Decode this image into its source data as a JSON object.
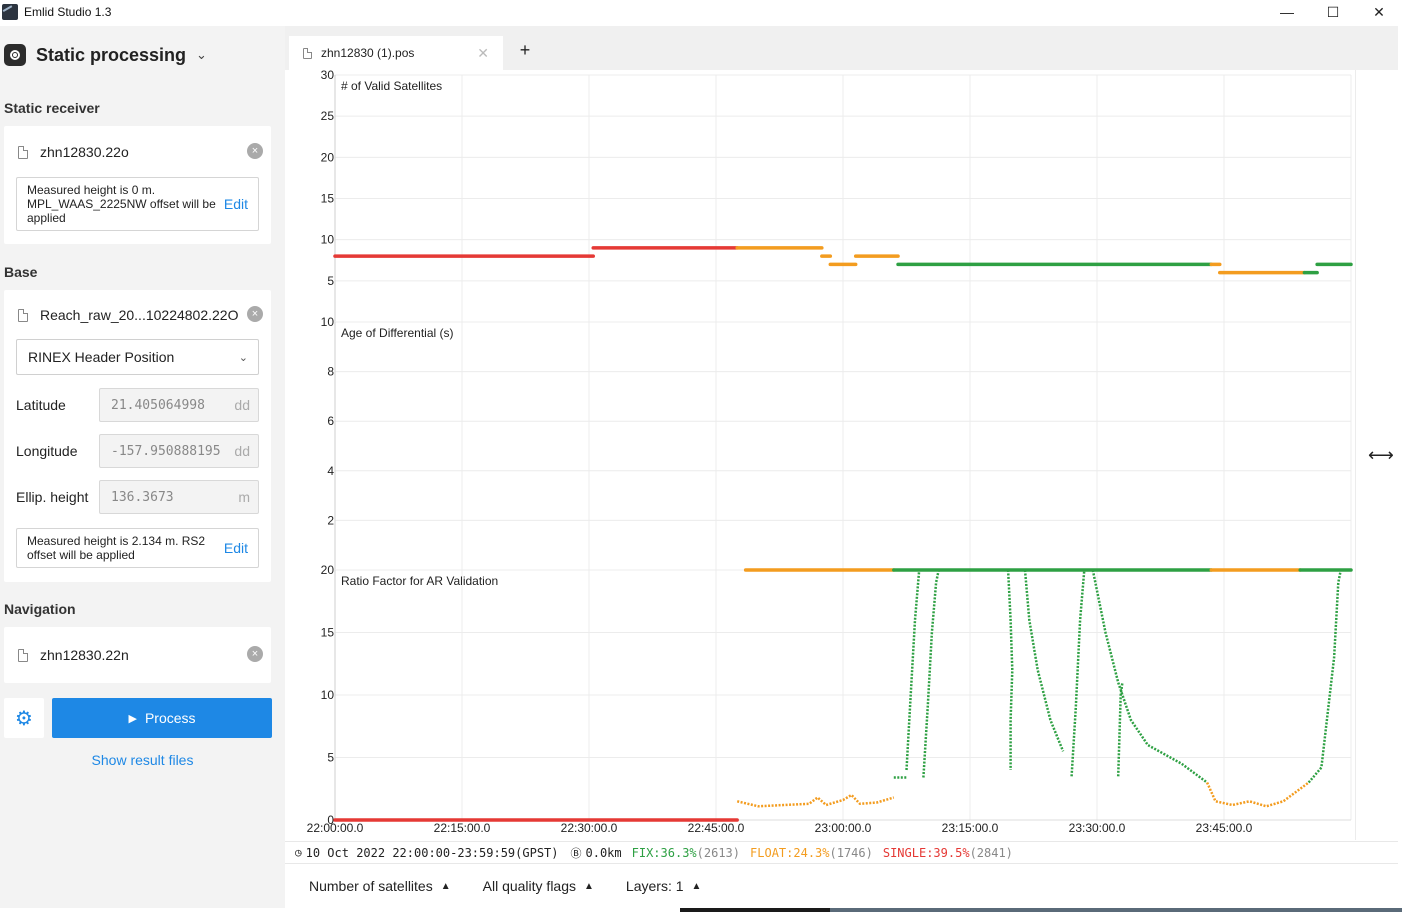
{
  "window": {
    "title": "Emlid Studio 1.3",
    "minimize_glyph": "—",
    "maximize_glyph": "☐",
    "close_glyph": "✕"
  },
  "sidebar": {
    "mode_title": "Static processing",
    "static_receiver": {
      "label": "Static receiver",
      "file": "zhn12830.22o",
      "note": "Measured height is 0 m. MPL_WAAS_2225NW offset will be applied",
      "edit": "Edit"
    },
    "base": {
      "label": "Base",
      "file": "Reach_raw_20...10224802.22O",
      "position_source": "RINEX Header Position",
      "latitude_label": "Latitude",
      "latitude": "21.405064998",
      "latitude_unit": "dd",
      "longitude_label": "Longitude",
      "longitude": "-157.950888195",
      "longitude_unit": "dd",
      "height_label": "Ellip. height",
      "height": "136.3673",
      "height_unit": "m",
      "note": "Measured height is 2.134 m. RS2 offset will be applied",
      "edit": "Edit"
    },
    "navigation": {
      "label": "Navigation",
      "file": "zhn12830.22n"
    },
    "process_label": "Process",
    "show_results": "Show result files"
  },
  "tabs": [
    {
      "label": "zhn12830 (1).pos"
    }
  ],
  "status": {
    "datetime": "10 Oct 2022 22:00:00-23:59:59(GPST)",
    "distance": "0.0km",
    "fix": "FIX:36.3%",
    "fix_count": "(2613)",
    "float": "FLOAT:24.3%",
    "float_count": "(1746)",
    "single": "SINGLE:39.5%",
    "single_count": "(2841)"
  },
  "bottom": {
    "satellites": "Number of satellites",
    "quality": "All quality flags",
    "layers": "Layers: 1"
  },
  "colors": {
    "fix": "#2ea043",
    "float": "#f39c1f",
    "single": "#e53935",
    "accent": "#1e88e5"
  },
  "chart_data": {
    "type": "line",
    "x_ticks": [
      "22:00:00.0",
      "22:15:00.0",
      "22:30:00.0",
      "22:45:00.0",
      "23:00:00.0",
      "23:15:00.0",
      "23:30:00.0",
      "23:45:00.0"
    ],
    "x_range_minutes": [
      0,
      120
    ],
    "panels": [
      {
        "title": "# of Valid Satellites",
        "ylim": [
          0,
          30
        ],
        "yticks": [
          5,
          10,
          15,
          20,
          25,
          30
        ],
        "segments": [
          {
            "q": "single",
            "x0": 0,
            "x1": 30.5,
            "y": 8
          },
          {
            "q": "single",
            "x0": 30.5,
            "x1": 47.5,
            "y": 9
          },
          {
            "q": "float",
            "x0": 47.5,
            "x1": 57.5,
            "y": 9
          },
          {
            "q": "float",
            "x0": 57.5,
            "x1": 58.5,
            "y": 8
          },
          {
            "q": "float",
            "x0": 58.5,
            "x1": 61.5,
            "y": 7
          },
          {
            "q": "float",
            "x0": 61.5,
            "x1": 66.5,
            "y": 8
          },
          {
            "q": "fix",
            "x0": 66.5,
            "x1": 103.5,
            "y": 7
          },
          {
            "q": "float",
            "x0": 103.5,
            "x1": 104.5,
            "y": 7
          },
          {
            "q": "float",
            "x0": 104.5,
            "x1": 114.5,
            "y": 6
          },
          {
            "q": "fix",
            "x0": 114.5,
            "x1": 116,
            "y": 6
          },
          {
            "q": "fix",
            "x0": 116,
            "x1": 120,
            "y": 7
          }
        ]
      },
      {
        "title": "Age of Differential (s)",
        "ylim": [
          0,
          10
        ],
        "yticks": [
          2,
          4,
          6,
          8,
          10
        ],
        "segments": []
      },
      {
        "title": "Ratio Factor for AR Validation",
        "ylim": [
          0,
          20
        ],
        "yticks": [
          0,
          5,
          10,
          15,
          20
        ],
        "segments": [
          {
            "q": "single",
            "x0": 0,
            "x1": 47.5,
            "y": 0
          },
          {
            "q": "float",
            "x0": 48.5,
            "x1": 66,
            "y": 20
          },
          {
            "q": "fix",
            "x0": 66,
            "x1": 103.5,
            "y": 20
          },
          {
            "q": "float",
            "x0": 103.5,
            "x1": 114,
            "y": 20
          },
          {
            "q": "fix",
            "x0": 114,
            "x1": 120,
            "y": 20
          }
        ],
        "curves": [
          {
            "q": "float",
            "points": [
              [
                47.5,
                1.5
              ],
              [
                50,
                1.1
              ],
              [
                53,
                1.2
              ],
              [
                56,
                1.3
              ],
              [
                57,
                1.8
              ],
              [
                58,
                1.2
              ],
              [
                60,
                1.6
              ],
              [
                61,
                2
              ],
              [
                62,
                1.3
              ],
              [
                64,
                1.4
              ],
              [
                66,
                1.8
              ]
            ]
          },
          {
            "q": "fix",
            "points": [
              [
                66,
                3.4
              ],
              [
                67.5,
                3.4
              ]
            ]
          },
          {
            "q": "fix",
            "points": [
              [
                67.5,
                4
              ],
              [
                68,
                10
              ],
              [
                68.5,
                16
              ],
              [
                69,
                20
              ]
            ]
          },
          {
            "q": "fix",
            "points": [
              [
                69.5,
                3.4
              ],
              [
                70,
                9
              ],
              [
                70.5,
                15
              ],
              [
                71,
                19
              ],
              [
                71.3,
                20
              ]
            ]
          },
          {
            "q": "fix",
            "points": [
              [
                79.5,
                20
              ],
              [
                79.8,
                16
              ],
              [
                80,
                12
              ],
              [
                79.8,
                8
              ],
              [
                79.8,
                4
              ]
            ]
          },
          {
            "q": "fix",
            "points": [
              [
                81.5,
                20
              ],
              [
                82,
                16
              ],
              [
                83,
                12
              ],
              [
                84.5,
                8
              ],
              [
                86,
                5.5
              ]
            ]
          },
          {
            "q": "fix",
            "points": [
              [
                87,
                3.5
              ],
              [
                87.5,
                9
              ],
              [
                88,
                16
              ],
              [
                88.5,
                20
              ]
            ]
          },
          {
            "q": "fix",
            "points": [
              [
                89.5,
                20
              ],
              [
                91,
                15
              ],
              [
                92.5,
                11
              ],
              [
                94,
                8
              ],
              [
                96,
                6
              ],
              [
                100,
                4.5
              ],
              [
                103,
                3
              ]
            ]
          },
          {
            "q": "fix",
            "points": [
              [
                92.5,
                3.5
              ],
              [
                92.8,
                10
              ],
              [
                93,
                11
              ]
            ]
          },
          {
            "q": "float",
            "points": [
              [
                103,
                3
              ],
              [
                104,
                1.5
              ],
              [
                106,
                1.2
              ],
              [
                108,
                1.5
              ],
              [
                110,
                1.1
              ],
              [
                112,
                1.5
              ],
              [
                114,
                2.5
              ],
              [
                115,
                3
              ]
            ]
          },
          {
            "q": "fix",
            "points": [
              [
                115,
                3
              ],
              [
                116.5,
                4.2
              ],
              [
                118,
                13
              ],
              [
                118.5,
                19
              ],
              [
                118.8,
                20
              ]
            ]
          }
        ]
      }
    ]
  }
}
